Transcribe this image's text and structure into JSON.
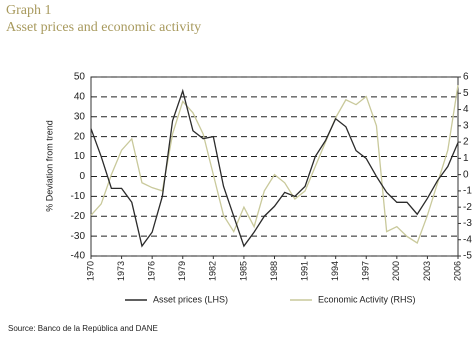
{
  "chart_data": {
    "type": "line",
    "title": "Graph 1",
    "subtitle": "Asset prices and economic activity",
    "y_label": "% Deviation from trend",
    "source": "Source: Banco de la República and DANE",
    "x": [
      1970,
      1971,
      1972,
      1973,
      1974,
      1975,
      1976,
      1977,
      1978,
      1979,
      1980,
      1981,
      1982,
      1983,
      1984,
      1985,
      1986,
      1987,
      1988,
      1989,
      1990,
      1991,
      1992,
      1993,
      1994,
      1995,
      1996,
      1997,
      1998,
      1999,
      2000,
      2001,
      2002,
      2003,
      2004,
      2005,
      2006
    ],
    "xlim": [
      1970,
      2006
    ],
    "xticks": [
      1970,
      1973,
      1976,
      1979,
      1982,
      1985,
      1988,
      1991,
      1994,
      1997,
      2000,
      2003,
      2006
    ],
    "ylim": [
      -40,
      50
    ],
    "yticks": [
      -40,
      -30,
      -20,
      -10,
      0,
      10,
      20,
      30,
      40,
      50
    ],
    "y2lim": [
      -5,
      6
    ],
    "y2ticks": [
      -5,
      -4,
      -3,
      -2,
      -1,
      0,
      1,
      2,
      3,
      4,
      5,
      6
    ],
    "grid": true,
    "series": [
      {
        "name": "Asset prices (LHS)",
        "color": "#2b2b2b",
        "values": [
          24,
          10,
          -6,
          -6,
          -13,
          -35,
          -28,
          -10,
          28,
          43,
          23,
          19,
          20,
          -5,
          -20,
          -35,
          -28,
          -20,
          -15,
          -8,
          -10,
          -5,
          10,
          18,
          29,
          25,
          13,
          9,
          0,
          -8,
          -13,
          -13,
          -19,
          -11,
          -2,
          5,
          17
        ]
      },
      {
        "name": "Economic Activity (RHS)",
        "color": "#c9c99b",
        "axis": "y2",
        "values": [
          -2.5,
          -1.8,
          0,
          1.5,
          2.2,
          -0.5,
          -0.8,
          -1,
          2.5,
          4.5,
          3.8,
          2.5,
          0,
          -2.5,
          -3.5,
          -2,
          -3.2,
          -1,
          0,
          -0.5,
          -1.5,
          -1,
          0.5,
          2,
          3.5,
          4.6,
          4.3,
          4.8,
          3,
          -3.5,
          -3.2,
          -3.8,
          -4.2,
          -2.5,
          -0.5,
          1.5,
          5.5
        ]
      }
    ]
  }
}
